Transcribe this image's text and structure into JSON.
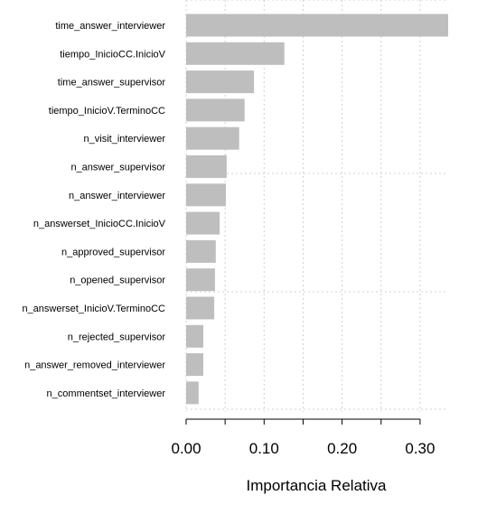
{
  "chart_data": {
    "type": "bar",
    "orientation": "horizontal",
    "categories": [
      "time_answer_interviewer",
      "tiempo_InicioCC.InicioV",
      "time_answer_supervisor",
      "tiempo_InicioV.TerminoCC",
      "n_visit_interviewer",
      "n_answer_supervisor",
      "n_answer_interviewer",
      "n_answerset_InicioCC.InicioV",
      "n_approved_supervisor",
      "n_opened_supervisor",
      "n_answerset_InicioV.TerminoCC",
      "n_rejected_supervisor",
      "n_answer_removed_interviewer",
      "n_commentset_interviewer"
    ],
    "values": [
      0.336,
      0.126,
      0.087,
      0.075,
      0.068,
      0.052,
      0.051,
      0.043,
      0.038,
      0.037,
      0.036,
      0.022,
      0.022,
      0.016
    ],
    "title": "",
    "xlabel": "Importancia Relativa",
    "ylabel": "",
    "xlim": [
      0,
      0.336
    ],
    "xticks": [
      "0.00",
      "0.10",
      "0.20",
      "0.30"
    ],
    "grid": true,
    "bar_color": "#bebebe",
    "grid_color": "#d0d0d0"
  }
}
